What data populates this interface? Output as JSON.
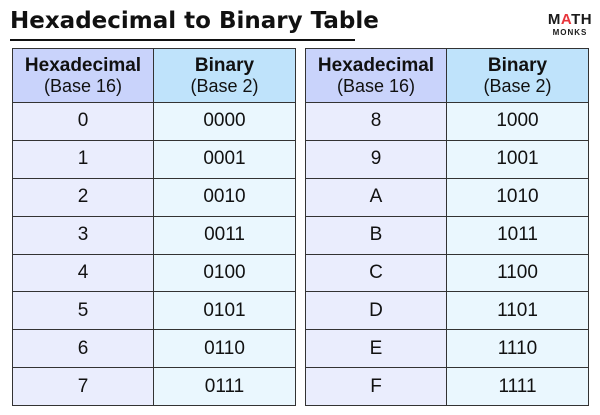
{
  "title": "Hexadecimal to Binary Table",
  "logo": {
    "text_before": "M",
    "text_accent": "A",
    "text_after": "TH",
    "subtext": "MONKS",
    "accent_color": "#e8343b"
  },
  "headers": {
    "hex_main": "Hexadecimal",
    "hex_sub": "(Base 16)",
    "bin_main": "Binary",
    "bin_sub": "(Base 2)"
  },
  "left_rows": [
    {
      "hex": "0",
      "bin": "0000"
    },
    {
      "hex": "1",
      "bin": "0001"
    },
    {
      "hex": "2",
      "bin": "0010"
    },
    {
      "hex": "3",
      "bin": "0011"
    },
    {
      "hex": "4",
      "bin": "0100"
    },
    {
      "hex": "5",
      "bin": "0101"
    },
    {
      "hex": "6",
      "bin": "0110"
    },
    {
      "hex": "7",
      "bin": "0111"
    }
  ],
  "right_rows": [
    {
      "hex": "8",
      "bin": "1000"
    },
    {
      "hex": "9",
      "bin": "1001"
    },
    {
      "hex": "A",
      "bin": "1010"
    },
    {
      "hex": "B",
      "bin": "1011"
    },
    {
      "hex": "C",
      "bin": "1100"
    },
    {
      "hex": "D",
      "bin": "1101"
    },
    {
      "hex": "E",
      "bin": "1110"
    },
    {
      "hex": "F",
      "bin": "1111"
    }
  ]
}
